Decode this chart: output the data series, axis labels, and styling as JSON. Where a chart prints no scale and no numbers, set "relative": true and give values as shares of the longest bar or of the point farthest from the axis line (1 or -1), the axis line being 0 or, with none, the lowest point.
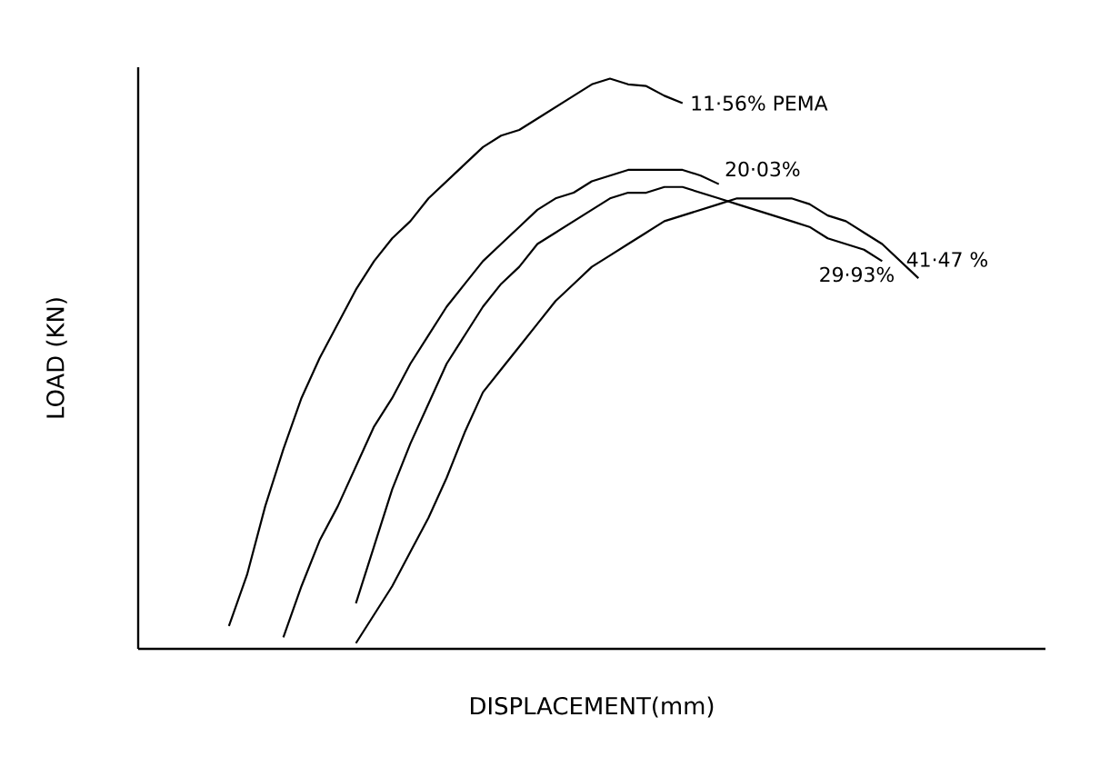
{
  "chart_data": {
    "type": "line",
    "relative": true,
    "xlabel": "DISPLACEMENT(mm)",
    "ylabel": "LOAD (KN)",
    "marker": "none",
    "line_style": "solid",
    "categories": [
      null,
      null,
      null,
      null,
      null,
      null,
      null,
      null,
      null,
      null,
      null,
      null,
      null,
      null,
      null,
      null,
      null,
      null,
      null,
      null,
      null,
      null,
      null,
      null,
      null,
      null,
      null,
      null,
      null,
      null,
      null,
      null,
      null,
      null,
      null,
      null,
      null,
      null,
      null,
      null,
      null,
      null,
      null,
      null,
      null,
      null,
      null,
      null,
      null,
      null,
      null
    ],
    "series": [
      {
        "name": "11·56% PEMA",
        "color": "#000000",
        "values": [
          null,
          null,
          null,
          null,
          null,
          0.04,
          0.13,
          0.25,
          0.35,
          0.44,
          0.51,
          0.57,
          0.63,
          0.68,
          0.72,
          0.75,
          0.79,
          0.82,
          0.85,
          0.88,
          0.9,
          0.91,
          0.93,
          0.95,
          0.97,
          0.99,
          1.0,
          0.99,
          0.987,
          0.97,
          0.957,
          null,
          null,
          null,
          null,
          null,
          null,
          null,
          null,
          null,
          null,
          null,
          null,
          null,
          null,
          null,
          null,
          null,
          null,
          null,
          null
        ]
      },
      {
        "name": "20·03%",
        "color": "#000000",
        "values": [
          null,
          null,
          null,
          null,
          null,
          null,
          null,
          null,
          0.02,
          0.11,
          0.19,
          0.25,
          0.32,
          0.39,
          0.44,
          0.5,
          0.55,
          0.6,
          0.64,
          0.68,
          0.71,
          0.74,
          0.77,
          0.79,
          0.8,
          0.82,
          0.83,
          0.84,
          0.84,
          0.84,
          0.84,
          0.83,
          0.815,
          null,
          null,
          null,
          null,
          null,
          null,
          null,
          null,
          null,
          null,
          null,
          null,
          null,
          null,
          null,
          null,
          null,
          null
        ]
      },
      {
        "name": "29·93%",
        "color": "#000000",
        "values": [
          null,
          null,
          null,
          null,
          null,
          null,
          null,
          null,
          null,
          null,
          null,
          null,
          0.08,
          0.18,
          0.28,
          0.36,
          0.43,
          0.5,
          0.55,
          0.6,
          0.64,
          0.67,
          0.71,
          0.73,
          0.75,
          0.77,
          0.79,
          0.8,
          0.8,
          0.81,
          0.81,
          0.8,
          0.79,
          0.78,
          0.77,
          0.76,
          0.75,
          0.74,
          0.72,
          0.71,
          0.7,
          0.68,
          null,
          null,
          null,
          null,
          null,
          null,
          null,
          null,
          null
        ]
      },
      {
        "name": "41·47 %",
        "color": "#000000",
        "values": [
          null,
          null,
          null,
          null,
          null,
          null,
          null,
          null,
          null,
          null,
          null,
          null,
          0.01,
          0.06,
          0.11,
          0.17,
          0.23,
          0.3,
          0.38,
          0.45,
          0.49,
          0.53,
          0.57,
          0.61,
          0.64,
          0.67,
          0.69,
          0.71,
          0.73,
          0.75,
          0.76,
          0.77,
          0.78,
          0.79,
          0.79,
          0.79,
          0.79,
          0.78,
          0.76,
          0.75,
          0.73,
          0.71,
          0.68,
          0.65,
          null,
          null,
          null,
          null,
          null,
          null,
          null
        ]
      }
    ]
  }
}
